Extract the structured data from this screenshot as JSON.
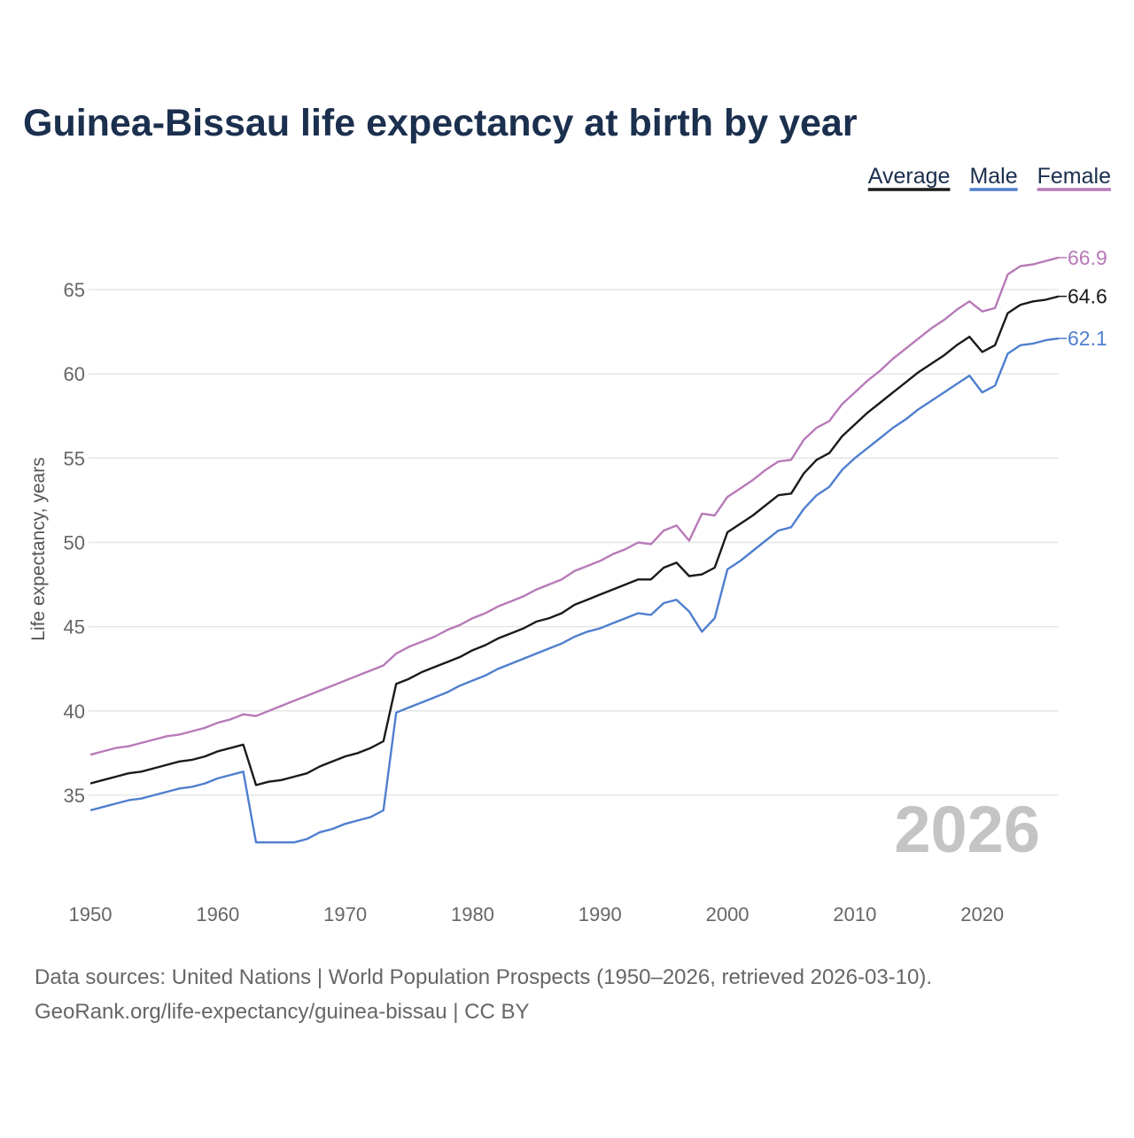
{
  "chart_data": {
    "type": "line",
    "title": "Guinea-Bissau life expectancy at birth by year",
    "xlabel": "",
    "ylabel": "Life expectancy, years",
    "xlim": [
      1950,
      2026
    ],
    "ylim": [
      30,
      67
    ],
    "grid": true,
    "x_ticks": [
      1950,
      1960,
      1970,
      1980,
      1990,
      2000,
      2010,
      2020
    ],
    "y_ticks": [
      35,
      40,
      45,
      50,
      55,
      60,
      65
    ],
    "legend_placement": "top-right",
    "current_year_label": "2026",
    "x_start": 1950,
    "series": [
      {
        "name": "Average",
        "color": "#1a1a1a",
        "end_label": "64.6",
        "values": [
          35.7,
          35.9,
          36.1,
          36.3,
          36.4,
          36.6,
          36.8,
          37.0,
          37.1,
          37.3,
          37.6,
          37.8,
          38.0,
          35.6,
          35.8,
          35.9,
          36.1,
          36.3,
          36.7,
          37.0,
          37.3,
          37.5,
          37.8,
          38.2,
          41.6,
          41.9,
          42.3,
          42.6,
          42.9,
          43.2,
          43.6,
          43.9,
          44.3,
          44.6,
          44.9,
          45.3,
          45.5,
          45.8,
          46.3,
          46.6,
          46.9,
          47.2,
          47.5,
          47.8,
          47.8,
          48.5,
          48.8,
          48.0,
          48.1,
          48.5,
          50.6,
          51.1,
          51.6,
          52.2,
          52.8,
          52.9,
          54.1,
          54.9,
          55.3,
          56.3,
          57.0,
          57.7,
          58.3,
          58.9,
          59.5,
          60.1,
          60.6,
          61.1,
          61.7,
          62.2,
          61.3,
          61.7,
          63.6,
          64.1,
          64.3,
          64.4,
          64.6
        ]
      },
      {
        "name": "Male",
        "color": "#4f7fcf",
        "end_label": "62.1",
        "values": [
          34.1,
          34.3,
          34.5,
          34.7,
          34.8,
          35.0,
          35.2,
          35.4,
          35.5,
          35.7,
          36.0,
          36.2,
          36.4,
          32.2,
          32.2,
          32.2,
          32.2,
          32.4,
          32.8,
          33.0,
          33.3,
          33.5,
          33.7,
          34.1,
          39.9,
          40.2,
          40.5,
          40.8,
          41.1,
          41.5,
          41.8,
          42.1,
          42.5,
          42.8,
          43.1,
          43.4,
          43.7,
          44.0,
          44.4,
          44.7,
          44.9,
          45.2,
          45.5,
          45.8,
          45.7,
          46.4,
          46.6,
          45.9,
          44.7,
          45.5,
          48.4,
          48.9,
          49.5,
          50.1,
          50.7,
          50.9,
          52.0,
          52.8,
          53.3,
          54.3,
          55.0,
          55.6,
          56.2,
          56.8,
          57.3,
          57.9,
          58.4,
          58.9,
          59.4,
          59.9,
          58.9,
          59.3,
          61.2,
          61.7,
          61.8,
          62.0,
          62.1
        ]
      },
      {
        "name": "Female",
        "color": "#b77ab8",
        "end_label": "66.9",
        "values": [
          37.4,
          37.6,
          37.8,
          37.9,
          38.1,
          38.3,
          38.5,
          38.6,
          38.8,
          39.0,
          39.3,
          39.5,
          39.8,
          39.7,
          40.0,
          40.3,
          40.6,
          40.9,
          41.2,
          41.5,
          41.8,
          42.1,
          42.4,
          42.7,
          43.4,
          43.8,
          44.1,
          44.4,
          44.8,
          45.1,
          45.5,
          45.8,
          46.2,
          46.5,
          46.8,
          47.2,
          47.5,
          47.8,
          48.3,
          48.6,
          48.9,
          49.3,
          49.6,
          50.0,
          49.9,
          50.7,
          51.0,
          50.1,
          51.7,
          51.6,
          52.7,
          53.2,
          53.7,
          54.3,
          54.8,
          54.9,
          56.1,
          56.8,
          57.2,
          58.2,
          58.9,
          59.6,
          60.2,
          60.9,
          61.5,
          62.1,
          62.7,
          63.2,
          63.8,
          64.3,
          63.7,
          63.9,
          65.9,
          66.4,
          66.5,
          66.7,
          66.9
        ]
      }
    ]
  },
  "footer": {
    "line1": "Data sources: United Nations | World Population Prospects (1950–2026, retrieved 2026-03-10).",
    "line2": "GeoRank.org/life-expectancy/guinea-bissau | CC BY"
  }
}
